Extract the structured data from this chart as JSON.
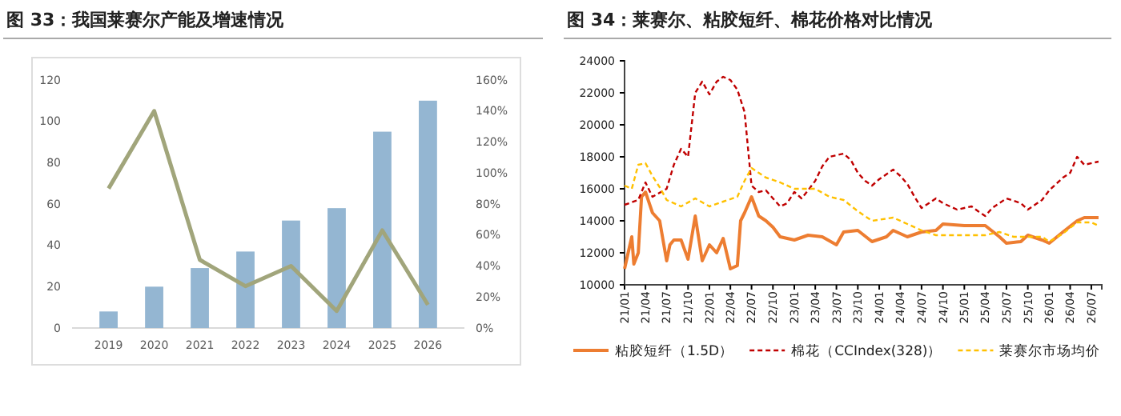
{
  "chart_data": [
    {
      "type": "bar",
      "title": "图 33：我国莱赛尔产能及增速情况",
      "categories": [
        "2019",
        "2020",
        "2021",
        "2022",
        "2023",
        "2024",
        "2025",
        "2026"
      ],
      "series": [
        {
          "type": "bar",
          "color": "#94b6d2",
          "values": [
            8,
            20,
            29,
            37,
            52,
            58,
            95,
            110
          ]
        },
        {
          "type": "line",
          "axis": "y2",
          "color": "#a1a57b",
          "values": [
            90,
            140,
            44,
            27,
            40,
            11,
            63,
            15
          ]
        }
      ],
      "ylim": [
        0,
        120
      ],
      "yticks": [
        0,
        20,
        40,
        60,
        80,
        100,
        120
      ],
      "y2lim": [
        0,
        160
      ],
      "y2ticks": [
        {
          "value": 0,
          "label": "0%"
        },
        {
          "value": 20,
          "label": "20%"
        },
        {
          "value": 40,
          "label": "40%"
        },
        {
          "value": 60,
          "label": "60%"
        },
        {
          "value": 80,
          "label": "80%"
        },
        {
          "value": 100,
          "label": "100%"
        },
        {
          "value": 120,
          "label": "120%"
        },
        {
          "value": 140,
          "label": "140%"
        },
        {
          "value": 160,
          "label": "160%"
        }
      ]
    },
    {
      "type": "line",
      "title": "图 34：莱赛尔、粘胶短纤、棉花价格对比情况",
      "legend": "bottom",
      "xlim": [
        "2021-01-01",
        "2026-08-15"
      ],
      "xticks": [
        {
          "value": "2021-01",
          "label": "21/01"
        },
        {
          "value": "2021-04",
          "label": "21/04"
        },
        {
          "value": "2021-07",
          "label": "21/07"
        },
        {
          "value": "2021-10",
          "label": "21/10"
        },
        {
          "value": "2022-01",
          "label": "22/01"
        },
        {
          "value": "2022-04",
          "label": "22/04"
        },
        {
          "value": "2022-07",
          "label": "22/07"
        },
        {
          "value": "2022-10",
          "label": "22/10"
        },
        {
          "value": "2023-01",
          "label": "23/01"
        },
        {
          "value": "2023-04",
          "label": "23/04"
        },
        {
          "value": "2023-07",
          "label": "23/07"
        },
        {
          "value": "2023-10",
          "label": "23/10"
        },
        {
          "value": "2024-01",
          "label": "24/01"
        },
        {
          "value": "2024-04",
          "label": "24/04"
        },
        {
          "value": "2024-07",
          "label": "24/07"
        },
        {
          "value": "2024-10",
          "label": "24/10"
        },
        {
          "value": "2025-01",
          "label": "25/01"
        },
        {
          "value": "2025-04",
          "label": "25/04"
        },
        {
          "value": "2025-07",
          "label": "25/07"
        },
        {
          "value": "2025-10",
          "label": "25/10"
        },
        {
          "value": "2026-01",
          "label": "26/01"
        },
        {
          "value": "2026-04",
          "label": "26/04"
        },
        {
          "value": "2026-07",
          "label": "26/07"
        }
      ],
      "ylim": [
        10000,
        24000
      ],
      "yticks": [
        10000,
        12000,
        14000,
        16000,
        18000,
        20000,
        22000,
        24000
      ],
      "series": [
        {
          "name": "粘胶短纤（1.5D）",
          "color": "#ed7d31",
          "line_style": "solid",
          "x": [
            "2021-01-01",
            "2021-02-01",
            "2021-02-10",
            "2021-03-01",
            "2021-03-15",
            "2021-04-01",
            "2021-05-01",
            "2021-06-01",
            "2021-07-01",
            "2021-07-15",
            "2021-08-01",
            "2021-09-01",
            "2021-10-01",
            "2021-11-01",
            "2021-12-01",
            "2022-01-01",
            "2022-02-01",
            "2022-03-01",
            "2022-04-01",
            "2022-05-01",
            "2022-05-15",
            "2022-06-01",
            "2022-07-01",
            "2022-08-01",
            "2022-09-01",
            "2022-10-01",
            "2022-11-01",
            "2023-01-01",
            "2023-03-01",
            "2023-05-01",
            "2023-07-01",
            "2023-08-01",
            "2023-10-01",
            "2023-12-01",
            "2024-02-01",
            "2024-03-01",
            "2024-05-01",
            "2024-07-01",
            "2024-09-01",
            "2024-10-01",
            "2025-01-01",
            "2025-04-01",
            "2025-06-01",
            "2025-07-01",
            "2025-09-01",
            "2025-10-01",
            "2025-12-01",
            "2026-01-01",
            "2026-03-01",
            "2026-05-01",
            "2026-06-01",
            "2026-08-01"
          ],
          "values": [
            11000,
            13000,
            11300,
            12000,
            15500,
            15800,
            14500,
            14000,
            11500,
            12500,
            12800,
            12800,
            11600,
            14300,
            11500,
            12500,
            12000,
            12900,
            11000,
            11200,
            14000,
            14500,
            15500,
            14300,
            14000,
            13600,
            13000,
            12800,
            13100,
            13000,
            12500,
            13300,
            13400,
            12700,
            13000,
            13400,
            13000,
            13300,
            13400,
            13800,
            13700,
            13700,
            13000,
            12600,
            12700,
            13100,
            12800,
            12600,
            13300,
            14000,
            14200,
            14200
          ]
        },
        {
          "name": "棉花（CCIndex(328)）",
          "color": "#c00000",
          "line_style": "dashed",
          "x": [
            "2021-01-01",
            "2021-03-01",
            "2021-04-01",
            "2021-05-01",
            "2021-07-01",
            "2021-08-01",
            "2021-09-01",
            "2021-10-01",
            "2021-11-01",
            "2021-12-01",
            "2022-01-01",
            "2022-02-01",
            "2022-03-01",
            "2022-04-01",
            "2022-05-01",
            "2022-06-01",
            "2022-07-01",
            "2022-08-01",
            "2022-09-01",
            "2022-10-01",
            "2022-11-01",
            "2022-12-01",
            "2023-01-01",
            "2023-02-01",
            "2023-03-01",
            "2023-04-01",
            "2023-05-01",
            "2023-06-01",
            "2023-08-01",
            "2023-09-01",
            "2023-10-01",
            "2023-11-01",
            "2023-12-01",
            "2024-01-01",
            "2024-03-01",
            "2024-04-01",
            "2024-05-01",
            "2024-06-01",
            "2024-07-01",
            "2024-09-01",
            "2024-10-01",
            "2024-12-01",
            "2025-02-01",
            "2025-03-01",
            "2025-04-01",
            "2025-05-01",
            "2025-07-01",
            "2025-09-01",
            "2025-10-01",
            "2025-12-01",
            "2026-01-01",
            "2026-03-01",
            "2026-04-01",
            "2026-05-01",
            "2026-06-01",
            "2026-08-01"
          ],
          "values": [
            15000,
            15300,
            16400,
            15500,
            16000,
            17500,
            18500,
            18000,
            22000,
            22700,
            21900,
            22700,
            23000,
            22800,
            22200,
            20800,
            16200,
            15800,
            15900,
            15400,
            14900,
            15100,
            15800,
            15400,
            15900,
            16500,
            17400,
            18000,
            18200,
            17800,
            17000,
            16500,
            16200,
            16600,
            17200,
            16800,
            16300,
            15500,
            14800,
            15400,
            15100,
            14700,
            14900,
            14600,
            14300,
            14800,
            15400,
            15100,
            14700,
            15300,
            15900,
            16700,
            17000,
            18000,
            17500,
            17700
          ]
        },
        {
          "name": "莱赛尔市场均价",
          "color": "#ffc000",
          "line_style": "dashed",
          "x": [
            "2021-01-01",
            "2021-02-01",
            "2021-03-01",
            "2021-04-01",
            "2021-05-01",
            "2021-06-01",
            "2021-07-01",
            "2021-09-01",
            "2021-11-01",
            "2022-01-01",
            "2022-03-01",
            "2022-05-01",
            "2022-06-01",
            "2022-07-01",
            "2022-09-01",
            "2022-11-01",
            "2023-01-01",
            "2023-04-01",
            "2023-06-01",
            "2023-08-01",
            "2023-10-01",
            "2023-12-01",
            "2024-03-01",
            "2024-05-01",
            "2024-07-01",
            "2024-09-01",
            "2025-04-01",
            "2025-06-01",
            "2025-08-01",
            "2025-12-01",
            "2026-01-01",
            "2026-03-01",
            "2026-05-01",
            "2026-07-01",
            "2026-08-01"
          ],
          "values": [
            16200,
            16000,
            17500,
            17600,
            16800,
            16100,
            15300,
            14900,
            15400,
            14900,
            15200,
            15500,
            16500,
            17300,
            16700,
            16400,
            16000,
            16000,
            15500,
            15300,
            14600,
            14000,
            14200,
            13800,
            13400,
            13100,
            13100,
            13300,
            13000,
            13000,
            12700,
            13200,
            13900,
            13900,
            13700
          ]
        }
      ]
    }
  ]
}
